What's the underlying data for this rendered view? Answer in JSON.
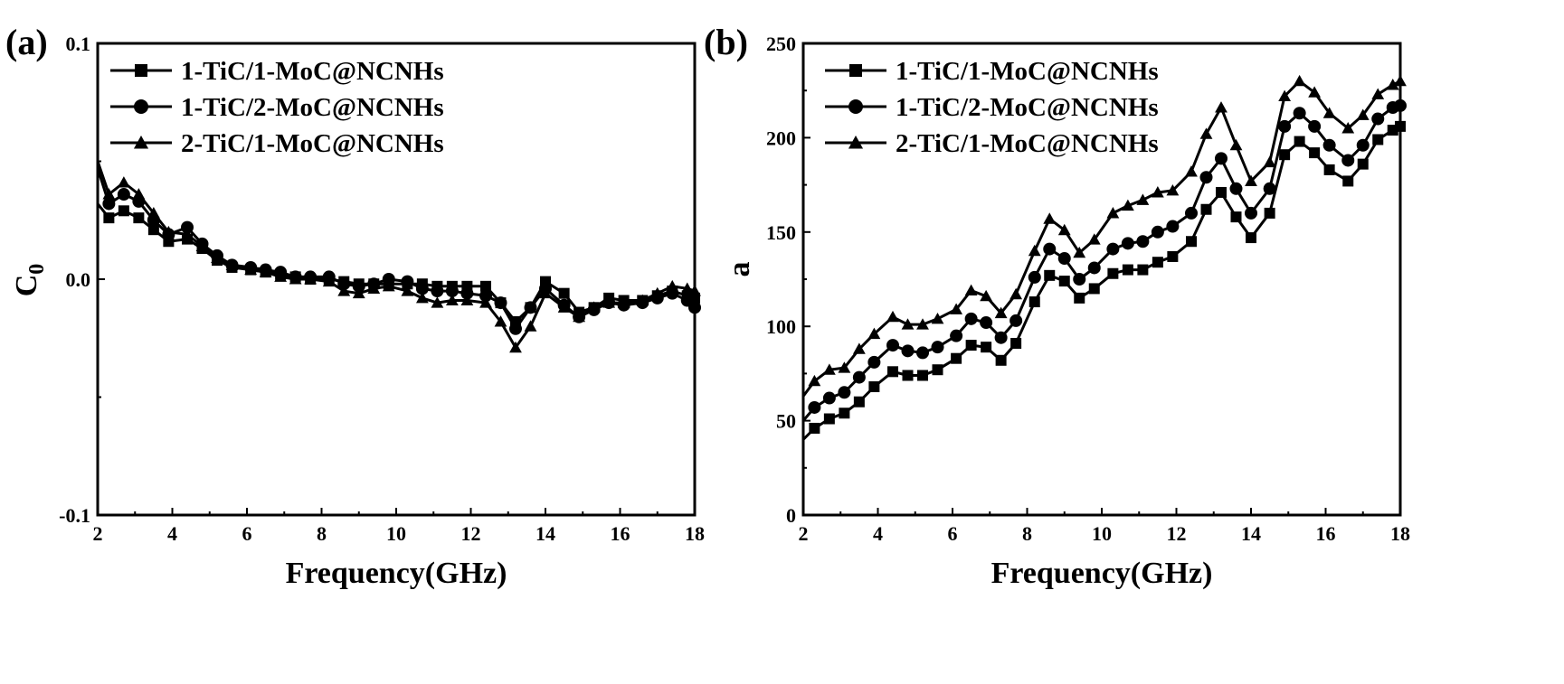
{
  "chart_data": [
    {
      "type": "line",
      "panel_label": "(a)",
      "xlabel": "Frequency(GHz)",
      "ylabel": "C",
      "ylabel_subscript": "0",
      "xlim": [
        2,
        18
      ],
      "ylim": [
        -0.1,
        0.1
      ],
      "xticks": [
        "2",
        "4",
        "6",
        "8",
        "10",
        "12",
        "14",
        "16",
        "18"
      ],
      "yticks": [
        "-0.1",
        "0.0",
        "0.1"
      ],
      "grid": false,
      "legend_position": "top-left",
      "x": [
        2.0,
        2.3,
        2.7,
        3.1,
        3.5,
        3.9,
        4.4,
        4.8,
        5.2,
        5.6,
        6.1,
        6.5,
        6.9,
        7.3,
        7.7,
        8.2,
        8.6,
        9.0,
        9.4,
        9.8,
        10.3,
        10.7,
        11.1,
        11.5,
        11.9,
        12.4,
        12.8,
        13.2,
        13.6,
        14.0,
        14.5,
        14.9,
        15.3,
        15.7,
        16.1,
        16.6,
        17.0,
        17.4,
        17.8,
        18.0
      ],
      "series": [
        {
          "name": "1-TiC/1-MoC@NCNHs",
          "marker": "square",
          "values": [
            0.032,
            0.026,
            0.029,
            0.026,
            0.021,
            0.016,
            0.017,
            0.013,
            0.008,
            0.005,
            0.004,
            0.003,
            0.002,
            0.001,
            0.0,
            0.0,
            -0.001,
            -0.002,
            -0.002,
            -0.002,
            -0.002,
            -0.002,
            -0.003,
            -0.003,
            -0.003,
            -0.003,
            -0.01,
            -0.018,
            -0.012,
            -0.001,
            -0.006,
            -0.014,
            -0.012,
            -0.008,
            -0.009,
            -0.009,
            -0.007,
            -0.005,
            -0.007,
            -0.008
          ]
        },
        {
          "name": "1-TiC/2-MoC@NCNHs",
          "marker": "circle",
          "values": [
            0.047,
            0.032,
            0.036,
            0.033,
            0.025,
            0.019,
            0.022,
            0.015,
            0.01,
            0.006,
            0.005,
            0.004,
            0.003,
            0.001,
            0.001,
            0.001,
            -0.002,
            -0.003,
            -0.002,
            0.0,
            -0.001,
            -0.004,
            -0.005,
            -0.005,
            -0.006,
            -0.007,
            -0.01,
            -0.021,
            -0.012,
            -0.004,
            -0.011,
            -0.016,
            -0.013,
            -0.01,
            -0.011,
            -0.01,
            -0.008,
            -0.006,
            -0.009,
            -0.012
          ]
        },
        {
          "name": "2-TiC/1-MoC@NCNHs",
          "marker": "triangle",
          "values": [
            0.05,
            0.036,
            0.041,
            0.036,
            0.028,
            0.02,
            0.019,
            0.014,
            0.009,
            0.006,
            0.004,
            0.003,
            0.001,
            0.0,
            0.0,
            -0.001,
            -0.005,
            -0.006,
            -0.004,
            -0.003,
            -0.005,
            -0.008,
            -0.01,
            -0.009,
            -0.009,
            -0.01,
            -0.018,
            -0.029,
            -0.02,
            -0.006,
            -0.012,
            -0.016,
            -0.012,
            -0.01,
            -0.01,
            -0.009,
            -0.006,
            -0.003,
            -0.004,
            -0.005
          ]
        }
      ]
    },
    {
      "type": "line",
      "panel_label": "(b)",
      "xlabel": "Frequency(GHz)",
      "ylabel": "a",
      "xlim": [
        2,
        18
      ],
      "ylim": [
        0,
        250
      ],
      "xticks": [
        "2",
        "4",
        "6",
        "8",
        "10",
        "12",
        "14",
        "16",
        "18"
      ],
      "yticks": [
        "0",
        "50",
        "100",
        "150",
        "200",
        "250"
      ],
      "grid": false,
      "legend_position": "top-left",
      "x": [
        2.0,
        2.3,
        2.7,
        3.1,
        3.5,
        3.9,
        4.4,
        4.8,
        5.2,
        5.6,
        6.1,
        6.5,
        6.9,
        7.3,
        7.7,
        8.2,
        8.6,
        9.0,
        9.4,
        9.8,
        10.3,
        10.7,
        11.1,
        11.5,
        11.9,
        12.4,
        12.8,
        13.2,
        13.6,
        14.0,
        14.5,
        14.9,
        15.3,
        15.7,
        16.1,
        16.6,
        17.0,
        17.4,
        17.8,
        18.0
      ],
      "series": [
        {
          "name": "1-TiC/1-MoC@NCNHs",
          "marker": "square",
          "values": [
            40,
            46,
            51,
            54,
            60,
            68,
            76,
            74,
            74,
            77,
            83,
            90,
            89,
            82,
            91,
            113,
            127,
            124,
            115,
            120,
            128,
            130,
            130,
            134,
            137,
            145,
            162,
            171,
            158,
            147,
            160,
            191,
            198,
            192,
            183,
            177,
            186,
            199,
            204,
            206
          ]
        },
        {
          "name": "1-TiC/2-MoC@NCNHs",
          "marker": "circle",
          "values": [
            50,
            57,
            62,
            65,
            73,
            81,
            90,
            87,
            86,
            89,
            95,
            104,
            102,
            94,
            103,
            126,
            141,
            136,
            125,
            131,
            141,
            144,
            145,
            150,
            153,
            160,
            179,
            189,
            173,
            160,
            173,
            206,
            213,
            206,
            196,
            188,
            196,
            210,
            216,
            217
          ]
        },
        {
          "name": "2-TiC/1-MoC@NCNHs",
          "marker": "triangle",
          "values": [
            63,
            71,
            77,
            78,
            88,
            96,
            105,
            101,
            101,
            104,
            109,
            119,
            116,
            107,
            117,
            140,
            157,
            151,
            139,
            146,
            160,
            164,
            167,
            171,
            172,
            182,
            202,
            216,
            196,
            177,
            187,
            222,
            230,
            224,
            213,
            205,
            212,
            223,
            228,
            230
          ]
        }
      ]
    }
  ]
}
